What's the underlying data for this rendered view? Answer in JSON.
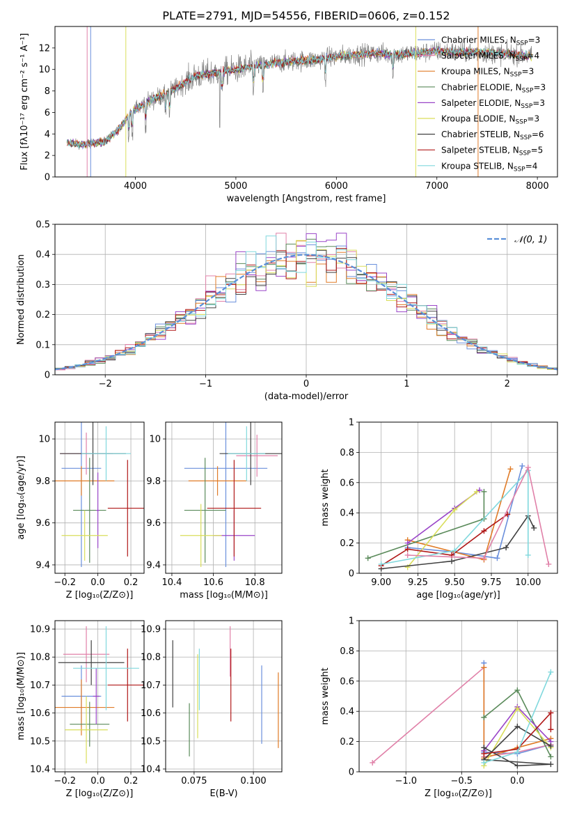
{
  "figure": {
    "title": "PLATE=2791, MJD=54556, FIBERID=0606, z=0.152"
  },
  "colors": {
    "obs": "#808080",
    "blue": "#6a8fdc",
    "orange": "#e07b27",
    "green": "#5a8a5a",
    "purple": "#9a45c8",
    "yellow": "#d9de5a",
    "black": "#404040",
    "red": "#b01818",
    "cyan": "#80d8dd",
    "pink": "#e080a8",
    "normal": "#5a8fd8"
  },
  "legend_spectrum": [
    {
      "label": "Chabrier MILES, N",
      "sub": "SSP",
      "tail": "=3",
      "color": "#6a8fdc"
    },
    {
      "label": "Salpeter MILES, N",
      "sub": "SSP",
      "tail": "=4",
      "color": "#e080a8"
    },
    {
      "label": "Kroupa MILES, N",
      "sub": "SSP",
      "tail": "=3",
      "color": "#e07b27"
    },
    {
      "label": "Chabrier ELODIE, N",
      "sub": "SSP",
      "tail": "=3",
      "color": "#5a8a5a"
    },
    {
      "label": "Salpeter ELODIE, N",
      "sub": "SSP",
      "tail": "=3",
      "color": "#9a45c8"
    },
    {
      "label": "Kroupa ELODIE, N",
      "sub": "SSP",
      "tail": "=3",
      "color": "#d9de5a"
    },
    {
      "label": "Chabrier STELIB, N",
      "sub": "SSP",
      "tail": "=6",
      "color": "#404040"
    },
    {
      "label": "Salpeter STELIB, N",
      "sub": "SSP",
      "tail": "=5",
      "color": "#b01818"
    },
    {
      "label": "Kroupa STELIB, N",
      "sub": "SSP",
      "tail": "=4",
      "color": "#80d8dd"
    }
  ],
  "legend_hist": {
    "label": "𝒩(0, 1)"
  },
  "chart_data": [
    {
      "id": "spectrum",
      "type": "line",
      "title": "PLATE=2791, MJD=54556, FIBERID=0606, z=0.152",
      "xlabel": "wavelength [Angstrom, rest frame]",
      "ylabel": "Flux [fλ10⁻¹⁷ erg cm⁻² s⁻¹ A⁻¹]",
      "xlim": [
        3200,
        8200
      ],
      "ylim": [
        0,
        14
      ],
      "xticks": [
        4000,
        5000,
        6000,
        7000,
        8000
      ],
      "yticks": [
        0,
        2,
        4,
        6,
        8,
        10,
        12
      ],
      "grid": false,
      "legend": "top-right",
      "continuum": {
        "x": [
          3320,
          3500,
          3700,
          3850,
          3950,
          4050,
          4200,
          4400,
          4600,
          4800,
          5000,
          5200,
          5400,
          5600,
          5800,
          6000,
          6200,
          6400,
          6600,
          6800,
          7000,
          7200,
          7400,
          7600,
          7800,
          7950
        ],
        "y": [
          3.2,
          3.0,
          3.3,
          4.6,
          6.0,
          6.6,
          7.3,
          8.2,
          9.4,
          9.7,
          10.0,
          10.3,
          10.6,
          10.8,
          10.9,
          11.2,
          11.4,
          11.5,
          11.4,
          11.5,
          11.7,
          11.6,
          11.6,
          11.5,
          11.4,
          11.2
        ]
      }
    },
    {
      "id": "residual-histogram",
      "type": "area",
      "xlabel": "(data-model)/error",
      "ylabel": "Normed distribution",
      "xlim": [
        -2.5,
        2.5
      ],
      "ylim": [
        0,
        0.5
      ],
      "xticks": [
        -2,
        -1,
        0,
        1,
        2
      ],
      "yticks": [
        0.0,
        0.1,
        0.2,
        0.3,
        0.4,
        0.5
      ],
      "grid": true,
      "legend": "top-right",
      "bin_edges": [
        -2.5,
        -2.4,
        -2.3,
        -2.2,
        -2.1,
        -2.0,
        -1.9,
        -1.8,
        -1.7,
        -1.6,
        -1.5,
        -1.4,
        -1.3,
        -1.2,
        -1.1,
        -1.0,
        -0.9,
        -0.8,
        -0.7,
        -0.6,
        -0.5,
        -0.4,
        -0.3,
        -0.2,
        -0.1,
        0.0,
        0.1,
        0.2,
        0.3,
        0.4,
        0.5,
        0.6,
        0.7,
        0.8,
        0.9,
        1.0,
        1.1,
        1.2,
        1.3,
        1.4,
        1.5,
        1.6,
        1.7,
        1.8,
        1.9,
        2.0,
        2.1,
        2.2,
        2.3,
        2.4,
        2.5
      ],
      "normal_curve": {
        "mu": 0,
        "sigma": 1
      }
    },
    {
      "id": "age-vs-Z",
      "type": "scatter",
      "xlabel": "Z [log₁₀(Z/Z⊙)]",
      "ylabel": "age  [log₁₀(age/yr)]",
      "xlim": [
        -0.26,
        0.28
      ],
      "ylim": [
        9.36,
        10.08
      ],
      "xticks": [
        -0.2,
        0.0,
        0.2
      ],
      "xticklabels": [
        "−0.2",
        "0.0",
        "0.2"
      ],
      "yticks": [
        9.4,
        9.6,
        9.8,
        10.0
      ],
      "grid": true,
      "series": [
        {
          "color": "blue",
          "x": -0.1,
          "xerr": 0.12,
          "y": 9.86,
          "yerr": 0.47
        },
        {
          "color": "pink",
          "x": -0.07,
          "xerr": 0.16,
          "y": 9.93,
          "yerr": 0.1
        },
        {
          "color": "orange",
          "x": -0.1,
          "xerr": 0.2,
          "y": 9.8,
          "yerr": 0.07
        },
        {
          "color": "green",
          "x": -0.05,
          "xerr": 0.1,
          "y": 9.66,
          "yerr": 0.25
        },
        {
          "color": "purple",
          "x": 0.0,
          "xerr": 0.01,
          "y": 9.66,
          "yerr": 0.18
        },
        {
          "color": "yellow",
          "x": -0.08,
          "xerr": 0.14,
          "y": 9.54,
          "yerr": 0.12
        },
        {
          "color": "black",
          "x": -0.03,
          "xerr": 0.2,
          "y": 9.93,
          "yerr": 0.15
        },
        {
          "color": "red",
          "x": 0.18,
          "xerr": 0.12,
          "y": 9.67,
          "yerr": 0.23
        },
        {
          "color": "cyan",
          "x": 0.05,
          "xerr": 0.15,
          "y": 9.93,
          "yerr": 0.13
        }
      ]
    },
    {
      "id": "age-vs-mass",
      "type": "scatter",
      "xlabel": "mass [log₁₀(M/M⊙)]",
      "ylabel": "",
      "xlim": [
        10.37,
        10.93
      ],
      "ylim": [
        9.36,
        10.08
      ],
      "xticks": [
        10.4,
        10.6,
        10.8
      ],
      "yticks": [
        9.4,
        9.6,
        9.8,
        10.0
      ],
      "grid": true,
      "series": [
        {
          "color": "blue",
          "x": 10.66,
          "xerr": 0.2,
          "y": 9.86,
          "yerr": 0.47
        },
        {
          "color": "pink",
          "x": 10.81,
          "xerr": 0.1,
          "y": 9.92,
          "yerr": 0.1
        },
        {
          "color": "orange",
          "x": 10.62,
          "xerr": 0.14,
          "y": 9.8,
          "yerr": 0.07
        },
        {
          "color": "green",
          "x": 10.56,
          "xerr": 0.1,
          "y": 9.66,
          "yerr": 0.25
        },
        {
          "color": "purple",
          "x": 10.7,
          "xerr": 0.1,
          "y": 9.54,
          "yerr": 0.12
        },
        {
          "color": "yellow",
          "x": 10.54,
          "xerr": 0.1,
          "y": 9.54,
          "yerr": 0.15
        },
        {
          "color": "black",
          "x": 10.78,
          "xerr": 0.15,
          "y": 9.93,
          "yerr": 0.15
        },
        {
          "color": "red",
          "x": 10.7,
          "xerr": 0.13,
          "y": 9.67,
          "yerr": 0.23
        },
        {
          "color": "cyan",
          "x": 10.76,
          "xerr": 0.09,
          "y": 9.93,
          "yerr": 0.13
        }
      ]
    },
    {
      "id": "weight-vs-age",
      "type": "line",
      "xlabel": "age  [log₁₀(age/yr)]",
      "ylabel": "mass weight",
      "xlim": [
        8.85,
        10.2
      ],
      "ylim": [
        0,
        1.0
      ],
      "xticks": [
        9.0,
        9.25,
        9.5,
        9.75,
        10.0
      ],
      "xticklabels": [
        "9.00",
        "9.25",
        "9.50",
        "9.75",
        "10.00"
      ],
      "yticks": [
        0.0,
        0.2,
        0.4,
        0.6,
        0.8,
        1.0
      ],
      "grid": true,
      "series": [
        {
          "color": "blue",
          "x": [
            9.18,
            9.5,
            9.79,
            9.96
          ],
          "y": [
            0.17,
            0.14,
            0.1,
            0.71
          ]
        },
        {
          "color": "orange",
          "x": [
            9.18,
            9.7,
            9.88
          ],
          "y": [
            0.22,
            0.09,
            0.69
          ]
        },
        {
          "color": "green",
          "x": [
            8.91,
            9.7,
            9.7
          ],
          "y": [
            0.1,
            0.36,
            0.54
          ]
        },
        {
          "color": "purple",
          "x": [
            9.18,
            9.5,
            9.67
          ],
          "y": [
            0.2,
            0.43,
            0.55
          ]
        },
        {
          "color": "yellow",
          "x": [
            9.18,
            9.5,
            9.65
          ],
          "y": [
            0.04,
            0.42,
            0.54
          ]
        },
        {
          "color": "black",
          "x": [
            9.0,
            9.48,
            9.85,
            10.0,
            10.04
          ],
          "y": [
            0.03,
            0.08,
            0.17,
            0.38,
            0.3
          ]
        },
        {
          "color": "red",
          "x": [
            9.0,
            9.18,
            9.48,
            9.7,
            9.86
          ],
          "y": [
            0.05,
            0.16,
            0.12,
            0.28,
            0.39
          ]
        },
        {
          "color": "cyan",
          "x": [
            9.0,
            9.5,
            10.0,
            10.0
          ],
          "y": [
            0.06,
            0.15,
            0.68,
            0.12
          ]
        },
        {
          "color": "pink",
          "x": [
            9.18,
            9.7,
            10.0,
            10.14
          ],
          "y": [
            0.12,
            0.1,
            0.7,
            0.06
          ]
        }
      ]
    },
    {
      "id": "mass-vs-Z",
      "type": "scatter",
      "xlabel": "Z [log₁₀(Z/Z⊙)]",
      "ylabel": "mass [log₁₀(M/M⊙)]",
      "xlim": [
        -0.26,
        0.28
      ],
      "ylim": [
        10.39,
        10.93
      ],
      "xticks": [
        -0.2,
        0.0,
        0.2
      ],
      "xticklabels": [
        "−0.2",
        "0.0",
        "0.2"
      ],
      "yticks": [
        10.4,
        10.5,
        10.6,
        10.7,
        10.8,
        10.9
      ],
      "grid": true,
      "series": [
        {
          "color": "blue",
          "x": -0.1,
          "xerr": 0.12,
          "y": 10.66,
          "yerr": 0.11
        },
        {
          "color": "pink",
          "x": -0.07,
          "xerr": 0.14,
          "y": 10.81,
          "yerr": 0.1
        },
        {
          "color": "orange",
          "x": -0.1,
          "xerr": 0.2,
          "y": 10.62,
          "yerr": 0.1
        },
        {
          "color": "green",
          "x": -0.05,
          "xerr": 0.12,
          "y": 10.56,
          "yerr": 0.08
        },
        {
          "color": "purple",
          "x": -0.01,
          "xerr": 0.02,
          "y": 10.66,
          "yerr": 0.1
        },
        {
          "color": "yellow",
          "x": -0.07,
          "xerr": 0.13,
          "y": 10.54,
          "yerr": 0.12
        },
        {
          "color": "black",
          "x": -0.04,
          "xerr": 0.2,
          "y": 10.78,
          "yerr": 0.08
        },
        {
          "color": "red",
          "x": 0.18,
          "xerr": 0.12,
          "y": 10.7,
          "yerr": 0.13
        },
        {
          "color": "cyan",
          "x": 0.05,
          "xerr": 0.2,
          "y": 10.76,
          "yerr": 0.15
        }
      ]
    },
    {
      "id": "mass-vs-EBV",
      "type": "scatter",
      "xlabel": "E(B-V)",
      "ylabel": "",
      "xlim": [
        0.063,
        0.112
      ],
      "ylim": [
        10.39,
        10.93
      ],
      "xticks": [
        0.075,
        0.1
      ],
      "xticklabels": [
        "0.075",
        "0.100"
      ],
      "yticks": [
        10.4,
        10.5,
        10.6,
        10.7,
        10.8,
        10.9
      ],
      "grid": true,
      "series": [
        {
          "color": "black",
          "x": 0.066,
          "y": 10.74,
          "yerr": 0.12
        },
        {
          "color": "green",
          "x": 0.073,
          "y": 10.54,
          "yerr": 0.095
        },
        {
          "color": "yellow",
          "x": 0.0765,
          "y": 10.66,
          "yerr": 0.15
        },
        {
          "color": "cyan",
          "x": 0.0772,
          "y": 10.72,
          "yerr": 0.11
        },
        {
          "color": "pink",
          "x": 0.0902,
          "y": 10.82,
          "yerr": 0.09
        },
        {
          "color": "red",
          "x": 0.0905,
          "y": 10.7,
          "yerr": 0.13
        },
        {
          "color": "blue",
          "x": 0.1035,
          "y": 10.63,
          "yerr": 0.14
        },
        {
          "color": "orange",
          "x": 0.1105,
          "y": 10.61,
          "yerr": 0.135
        }
      ]
    },
    {
      "id": "weight-vs-Z",
      "type": "line",
      "xlabel": "Z [log₁₀(Z/Z⊙)]",
      "ylabel": "mass weight",
      "xlim": [
        -1.42,
        0.36
      ],
      "ylim": [
        0,
        1.0
      ],
      "xticks": [
        -1.0,
        -0.5,
        0.0
      ],
      "xticklabels": [
        "−1.0",
        "−0.5",
        "0.0"
      ],
      "yticks": [
        0.0,
        0.2,
        0.4,
        0.6,
        0.8,
        1.0
      ],
      "grid": true,
      "series": [
        {
          "color": "blue",
          "x": [
            -0.3,
            -0.3,
            0.0,
            0.3
          ],
          "y": [
            0.72,
            0.13,
            0.12,
            0.18
          ]
        },
        {
          "color": "pink",
          "x": [
            -1.3,
            -0.3,
            -0.3,
            0.0,
            0.3
          ],
          "y": [
            0.06,
            0.69,
            0.1,
            0.13,
            0.18
          ]
        },
        {
          "color": "orange",
          "x": [
            -0.3,
            -0.3,
            0.0,
            0.3
          ],
          "y": [
            0.69,
            0.09,
            0.16,
            0.22
          ]
        },
        {
          "color": "green",
          "x": [
            -0.3,
            0.0,
            0.3
          ],
          "y": [
            0.36,
            0.54,
            0.1
          ]
        },
        {
          "color": "purple",
          "x": [
            -0.3,
            0.0,
            0.3
          ],
          "y": [
            0.14,
            0.43,
            0.2
          ]
        },
        {
          "color": "yellow",
          "x": [
            -0.3,
            0.0,
            0.3
          ],
          "y": [
            0.04,
            0.42,
            0.16
          ]
        },
        {
          "color": "black",
          "x": [
            -0.3,
            0.0,
            0.3,
            -0.3,
            0.0,
            0.3
          ],
          "y": [
            0.16,
            0.04,
            0.05,
            0.08,
            0.3,
            0.17
          ]
        },
        {
          "color": "red",
          "x": [
            -0.3,
            0.0,
            0.3,
            0.3
          ],
          "y": [
            0.12,
            0.15,
            0.39,
            0.28
          ]
        },
        {
          "color": "cyan",
          "x": [
            -0.3,
            0.0,
            0.3
          ],
          "y": [
            0.06,
            0.13,
            0.66
          ]
        }
      ]
    }
  ]
}
